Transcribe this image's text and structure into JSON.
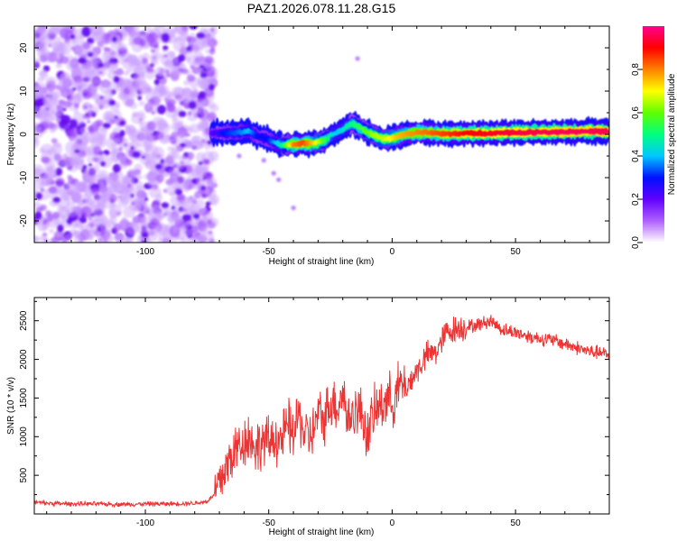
{
  "figure_title": "PAZ1.2026.078.11.28.G15",
  "chart_data": [
    {
      "type": "heatmap",
      "title": "PAZ1.2026.078.11.28.G15",
      "xlabel": "Height of straight line (km)",
      "ylabel": "Frequency (Hz)",
      "xlim": [
        -145,
        88
      ],
      "ylim": [
        -25,
        25
      ],
      "xticks": [
        -100,
        -50,
        0,
        50
      ],
      "yticks": [
        -20,
        -10,
        0,
        10,
        20
      ],
      "colorbar": {
        "label": "Normalized spectral amplitude",
        "range": [
          0,
          1
        ],
        "ticks": [
          0.0,
          0.2,
          0.4,
          0.6,
          0.8
        ],
        "tick_labels": [
          "0.0",
          "0.2",
          "0.4",
          "0.6",
          "0.8"
        ],
        "colormap": [
          "#ffffff",
          "#b060ff",
          "#6000ff",
          "#0010ff",
          "#00c8ff",
          "#00ff80",
          "#60ff00",
          "#ffff00",
          "#ff8000",
          "#ff0000",
          "#ff0090"
        ]
      },
      "noise_region": {
        "x_range": [
          -145,
          -73
        ],
        "frequency_range": [
          -25,
          25
        ]
      },
      "frequency_track": {
        "x": [
          -73,
          -68,
          -62,
          -58,
          -55,
          -50,
          -47,
          -44,
          -40,
          -36,
          -32,
          -28,
          -25,
          -22,
          -19,
          -16,
          -13,
          -10,
          -7,
          -4,
          -1,
          2,
          6,
          10,
          15,
          20,
          30,
          40,
          50,
          60,
          70,
          80,
          88
        ],
        "frequency": [
          0.4,
          0.3,
          0.4,
          0.8,
          -0.3,
          -1.2,
          -2.1,
          -2.5,
          -2.3,
          -2.1,
          -2.1,
          -1.6,
          -0.3,
          0.5,
          1.5,
          2.6,
          1.5,
          0.5,
          -0.2,
          -1.1,
          -0.9,
          -0.5,
          0.1,
          0.4,
          0.4,
          0.1,
          0.2,
          0.3,
          0.4,
          0.5,
          0.6,
          0.7,
          0.7
        ],
        "amplitude": [
          0.2,
          0.3,
          0.35,
          0.4,
          0.3,
          0.3,
          0.4,
          0.5,
          0.8,
          0.85,
          0.75,
          0.6,
          0.45,
          0.4,
          0.45,
          0.5,
          0.55,
          0.6,
          0.65,
          0.65,
          0.7,
          0.75,
          0.78,
          0.8,
          0.82,
          0.85,
          0.9,
          0.92,
          0.94,
          0.95,
          0.96,
          0.96,
          0.96
        ]
      }
    },
    {
      "type": "line",
      "title": "",
      "xlabel": "Height of straight line (km)",
      "ylabel": "SNR (10 * v/v)",
      "xlim": [
        -145,
        88
      ],
      "ylim": [
        0,
        2800
      ],
      "xticks": [
        -100,
        -50,
        0,
        50
      ],
      "yticks": [
        500,
        1000,
        1500,
        2000,
        2500
      ],
      "color": "#ee3333",
      "series": [
        {
          "name": "SNR",
          "x": [
            -145,
            -140,
            -130,
            -120,
            -110,
            -100,
            -90,
            -80,
            -75,
            -72,
            -68,
            -65,
            -62,
            -58,
            -55,
            -52,
            -50,
            -48,
            -45,
            -42,
            -40,
            -38,
            -35,
            -32,
            -30,
            -28,
            -25,
            -22,
            -20,
            -18,
            -15,
            -12,
            -10,
            -8,
            -5,
            -2,
            0,
            3,
            6,
            10,
            14,
            18,
            22,
            26,
            30,
            35,
            40,
            45,
            50,
            55,
            60,
            65,
            70,
            75,
            80,
            85,
            88
          ],
          "y": [
            150,
            140,
            130,
            130,
            125,
            130,
            130,
            140,
            160,
            250,
            550,
            750,
            900,
            1000,
            850,
            950,
            900,
            1000,
            950,
            1150,
            1000,
            1300,
            1000,
            1050,
            1300,
            1200,
            1450,
            1400,
            1600,
            1200,
            1350,
            1300,
            1000,
            1250,
            1400,
            1500,
            1450,
            1650,
            1650,
            1850,
            2050,
            2100,
            2350,
            2400,
            2420,
            2450,
            2500,
            2380,
            2350,
            2300,
            2270,
            2250,
            2200,
            2150,
            2100,
            2080,
            2050
          ]
        }
      ]
    }
  ]
}
